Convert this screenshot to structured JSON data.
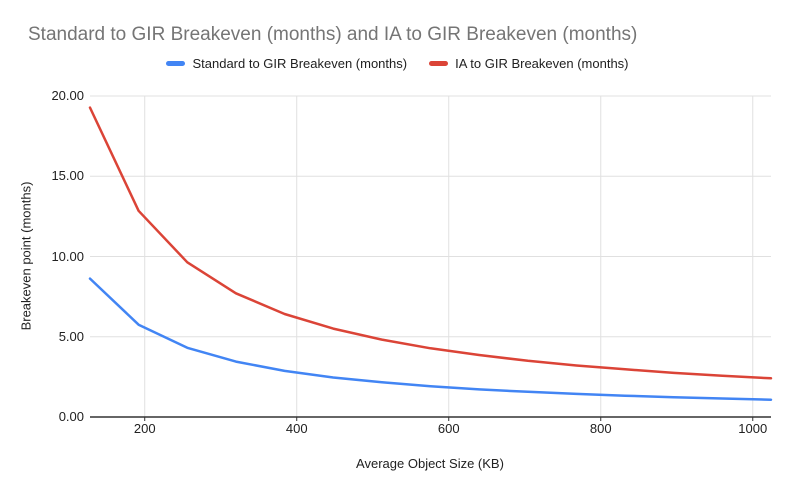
{
  "title": "Standard to GIR Breakeven (months) and IA to GIR Breakeven (months)",
  "legend": {
    "items": [
      {
        "label": "Standard to GIR Breakeven (months)",
        "color": "#4285f4"
      },
      {
        "label": "IA to GIR Breakeven (months)",
        "color": "#db4437"
      }
    ]
  },
  "chart_data": {
    "type": "line",
    "title": "Standard to GIR Breakeven (months) and IA to GIR Breakeven (months)",
    "xlabel": "Average Object Size (KB)",
    "ylabel": "Breakeven point (months)",
    "x": [
      128,
      192,
      256,
      320,
      384,
      448,
      512,
      576,
      640,
      704,
      768,
      832,
      896,
      960,
      1024
    ],
    "series": [
      {
        "name": "Standard to GIR Breakeven (months)",
        "color": "#4285f4",
        "values": [
          8.62,
          5.75,
          4.31,
          3.45,
          2.87,
          2.46,
          2.16,
          1.92,
          1.72,
          1.57,
          1.44,
          1.33,
          1.23,
          1.15,
          1.08
        ]
      },
      {
        "name": "IA to GIR Breakeven (months)",
        "color": "#db4437",
        "values": [
          19.28,
          12.85,
          9.64,
          7.71,
          6.42,
          5.51,
          4.82,
          4.28,
          3.86,
          3.5,
          3.21,
          2.97,
          2.75,
          2.57,
          2.41
        ]
      }
    ],
    "xlim": [
      128,
      1024
    ],
    "ylim": [
      0,
      20
    ],
    "x_ticks": [
      200,
      400,
      600,
      800,
      1000
    ],
    "y_ticks": [
      0,
      5,
      10,
      15,
      20
    ],
    "x_tick_labels": [
      "200",
      "400",
      "600",
      "800",
      "1000"
    ],
    "y_tick_labels": [
      "0.00",
      "5.00",
      "10.00",
      "15.00",
      "20.00"
    ],
    "grid": true,
    "legend_position": "top"
  },
  "colors": {
    "title_text": "#757575",
    "axis_text": "#212121",
    "gridline": "#e0e0e0",
    "axis_line": "#333333",
    "background": "#ffffff"
  }
}
